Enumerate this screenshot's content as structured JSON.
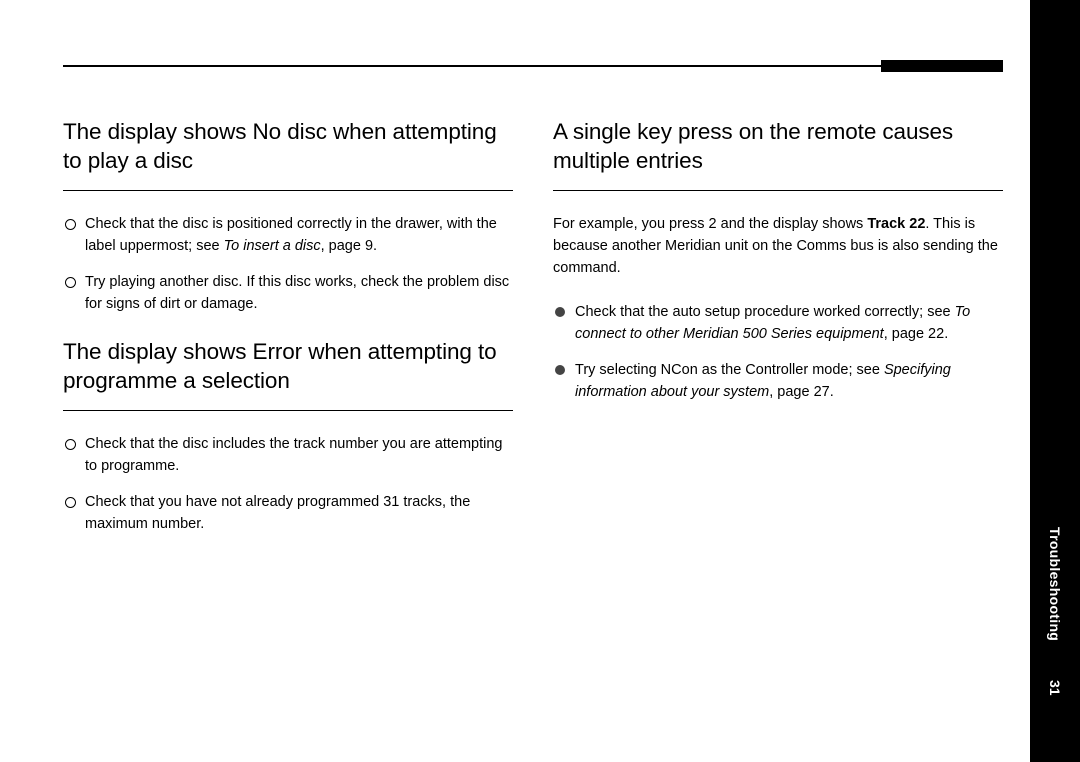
{
  "sidebar": {
    "section_label": "Troubleshooting",
    "page_number": "31"
  },
  "left": {
    "sections": [
      {
        "heading": "The display shows No disc when attempting to play a disc",
        "bullet_style": "ring",
        "items": [
          {
            "pre": "Check that the disc is positioned correctly in the drawer, with the label uppermost; see ",
            "em": "To insert a disc",
            "post": ", page 9."
          },
          {
            "pre": "Try playing another disc. If this disc works, check the problem disc for signs of dirt or damage.",
            "em": "",
            "post": ""
          }
        ]
      },
      {
        "heading": "The display shows Error when attempting to programme a selection",
        "bullet_style": "ring",
        "items": [
          {
            "pre": "Check that the disc includes the track number you are attempting to programme.",
            "em": "",
            "post": ""
          },
          {
            "pre": "Check that you have not already programmed 31 tracks, the maximum number.",
            "em": "",
            "post": ""
          }
        ]
      }
    ]
  },
  "right": {
    "heading": "A single key press on the remote causes multiple entries",
    "lead_pre": "For example, you press 2 and the display shows ",
    "lead_bold": "Track 22",
    "lead_post": ". This is because another Meridian unit on the Comms bus is also sending the command.",
    "bullet_style": "solid",
    "items": [
      {
        "pre": "Check that the auto setup procedure worked correctly; see ",
        "em": "To connect to other Meridian 500 Series equipment",
        "post": ", page 22."
      },
      {
        "pre": "Try selecting NCon as the Controller mode; see ",
        "em": "Specifying information about your system",
        "post": ", page 27."
      }
    ]
  }
}
